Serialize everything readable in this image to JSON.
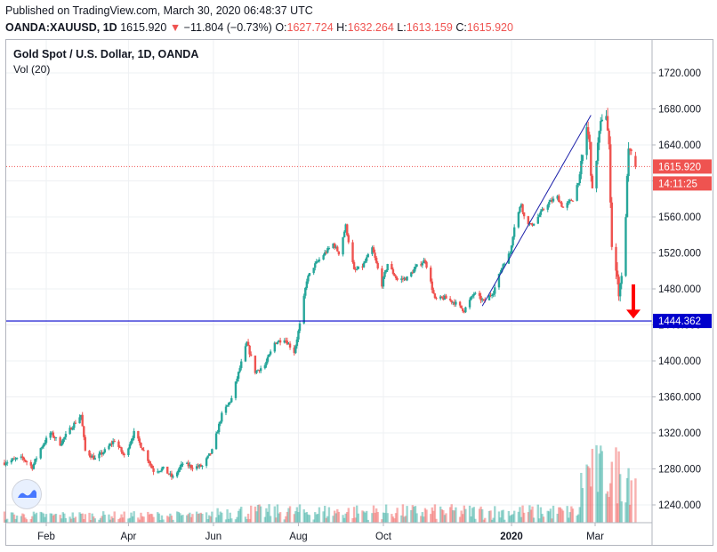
{
  "header": {
    "published": "Published on TradingView.com, March 30, 2020 06:48:37 UTC",
    "symbol": "OANDA:XAUUSD, 1D",
    "last": "1615.920",
    "change_arrow": "▼",
    "change": "−11.804 (−0.73%)",
    "o_label": "O:",
    "o_value": "1627.724",
    "h_label": "H:",
    "h_value": "1632.264",
    "l_label": "L:",
    "l_value": "1613.159",
    "c_label": "C:",
    "c_value": "1615.920"
  },
  "legend": {
    "title": "Gold Spot / U.S. Dollar, 1D, OANDA",
    "volume": "Vol (20)"
  },
  "price_labels": {
    "last_price": "1615.920",
    "countdown": "14:11:25",
    "support_level": "1444.362"
  },
  "icons": {
    "logo": "tradingview-logo-icon",
    "arrow": "red-down-arrow-icon"
  },
  "colors": {
    "up": "#26a69a",
    "down": "#ef5350",
    "support_line": "#0000cc",
    "trend_line": "#1e22aa",
    "arrow": "#ff0000"
  },
  "chart_data": {
    "type": "candlestick",
    "x_tick_labels": [
      "Feb",
      "Apr",
      "Jun",
      "Aug",
      "Oct",
      "2020",
      "Mar"
    ],
    "y_tick_labels": [
      "1720.000",
      "1680.000",
      "1640.000",
      "1600.000",
      "1560.000",
      "1520.000",
      "1480.000",
      "1440.000",
      "1400.000",
      "1360.000",
      "1320.000",
      "1280.000",
      "1240.000"
    ],
    "ylim": [
      1220,
      1740
    ],
    "support_level": 1444.362,
    "last_price": 1615.92,
    "trend_line": [
      {
        "date": "2019-12-11",
        "price": 1461
      },
      {
        "date": "2020-02-27",
        "price": 1673
      }
    ],
    "arrow": {
      "date": "2020-03-24",
      "from": 1485,
      "to": 1448
    },
    "price_path": [
      [
        "2019-01-02",
        1287
      ],
      [
        "2019-01-08",
        1290
      ],
      [
        "2019-01-15",
        1292
      ],
      [
        "2019-01-22",
        1282
      ],
      [
        "2019-01-28",
        1303
      ],
      [
        "2019-02-04",
        1320
      ],
      [
        "2019-02-11",
        1308
      ],
      [
        "2019-02-19",
        1326
      ],
      [
        "2019-02-26",
        1340
      ],
      [
        "2019-03-01",
        1300
      ],
      [
        "2019-03-08",
        1291
      ],
      [
        "2019-03-15",
        1300
      ],
      [
        "2019-03-22",
        1312
      ],
      [
        "2019-03-29",
        1294
      ],
      [
        "2019-04-05",
        1320
      ],
      [
        "2019-04-12",
        1300
      ],
      [
        "2019-04-19",
        1278
      ],
      [
        "2019-04-26",
        1280
      ],
      [
        "2019-05-03",
        1270
      ],
      [
        "2019-05-10",
        1286
      ],
      [
        "2019-05-17",
        1282
      ],
      [
        "2019-05-24",
        1283
      ],
      [
        "2019-05-31",
        1300
      ],
      [
        "2019-06-07",
        1340
      ],
      [
        "2019-06-14",
        1358
      ],
      [
        "2019-06-20",
        1392
      ],
      [
        "2019-06-25",
        1420
      ],
      [
        "2019-07-01",
        1388
      ],
      [
        "2019-07-08",
        1395
      ],
      [
        "2019-07-15",
        1420
      ],
      [
        "2019-07-22",
        1425
      ],
      [
        "2019-07-29",
        1410
      ],
      [
        "2019-08-02",
        1440
      ],
      [
        "2019-08-07",
        1490
      ],
      [
        "2019-08-12",
        1505
      ],
      [
        "2019-08-19",
        1518
      ],
      [
        "2019-08-26",
        1530
      ],
      [
        "2019-08-30",
        1520
      ],
      [
        "2019-09-04",
        1550
      ],
      [
        "2019-09-10",
        1500
      ],
      [
        "2019-09-16",
        1505
      ],
      [
        "2019-09-23",
        1525
      ],
      [
        "2019-09-30",
        1485
      ],
      [
        "2019-10-04",
        1508
      ],
      [
        "2019-10-11",
        1490
      ],
      [
        "2019-10-18",
        1492
      ],
      [
        "2019-10-25",
        1505
      ],
      [
        "2019-10-31",
        1512
      ],
      [
        "2019-11-07",
        1468
      ],
      [
        "2019-11-14",
        1470
      ],
      [
        "2019-11-21",
        1465
      ],
      [
        "2019-11-28",
        1456
      ],
      [
        "2019-12-05",
        1475
      ],
      [
        "2019-12-12",
        1466
      ],
      [
        "2019-12-19",
        1477
      ],
      [
        "2019-12-26",
        1508
      ],
      [
        "2019-12-31",
        1520
      ],
      [
        "2020-01-03",
        1550
      ],
      [
        "2020-01-08",
        1575
      ],
      [
        "2020-01-10",
        1560
      ],
      [
        "2020-01-15",
        1550
      ],
      [
        "2020-01-20",
        1560
      ],
      [
        "2020-01-27",
        1575
      ],
      [
        "2020-02-03",
        1582
      ],
      [
        "2020-02-07",
        1570
      ],
      [
        "2020-02-14",
        1580
      ],
      [
        "2020-02-19",
        1605
      ],
      [
        "2020-02-24",
        1660
      ],
      [
        "2020-02-26",
        1640
      ],
      [
        "2020-02-28",
        1585
      ],
      [
        "2020-03-03",
        1640
      ],
      [
        "2020-03-06",
        1672
      ],
      [
        "2020-03-09",
        1675
      ],
      [
        "2020-03-11",
        1635
      ],
      [
        "2020-03-13",
        1530
      ],
      [
        "2020-03-16",
        1500
      ],
      [
        "2020-03-18",
        1478
      ],
      [
        "2020-03-19",
        1485
      ],
      [
        "2020-03-20",
        1498
      ],
      [
        "2020-03-23",
        1555
      ],
      [
        "2020-03-24",
        1610
      ],
      [
        "2020-03-25",
        1630
      ],
      [
        "2020-03-26",
        1630
      ],
      [
        "2020-03-27",
        1628
      ],
      [
        "2020-03-30",
        1616
      ]
    ]
  }
}
